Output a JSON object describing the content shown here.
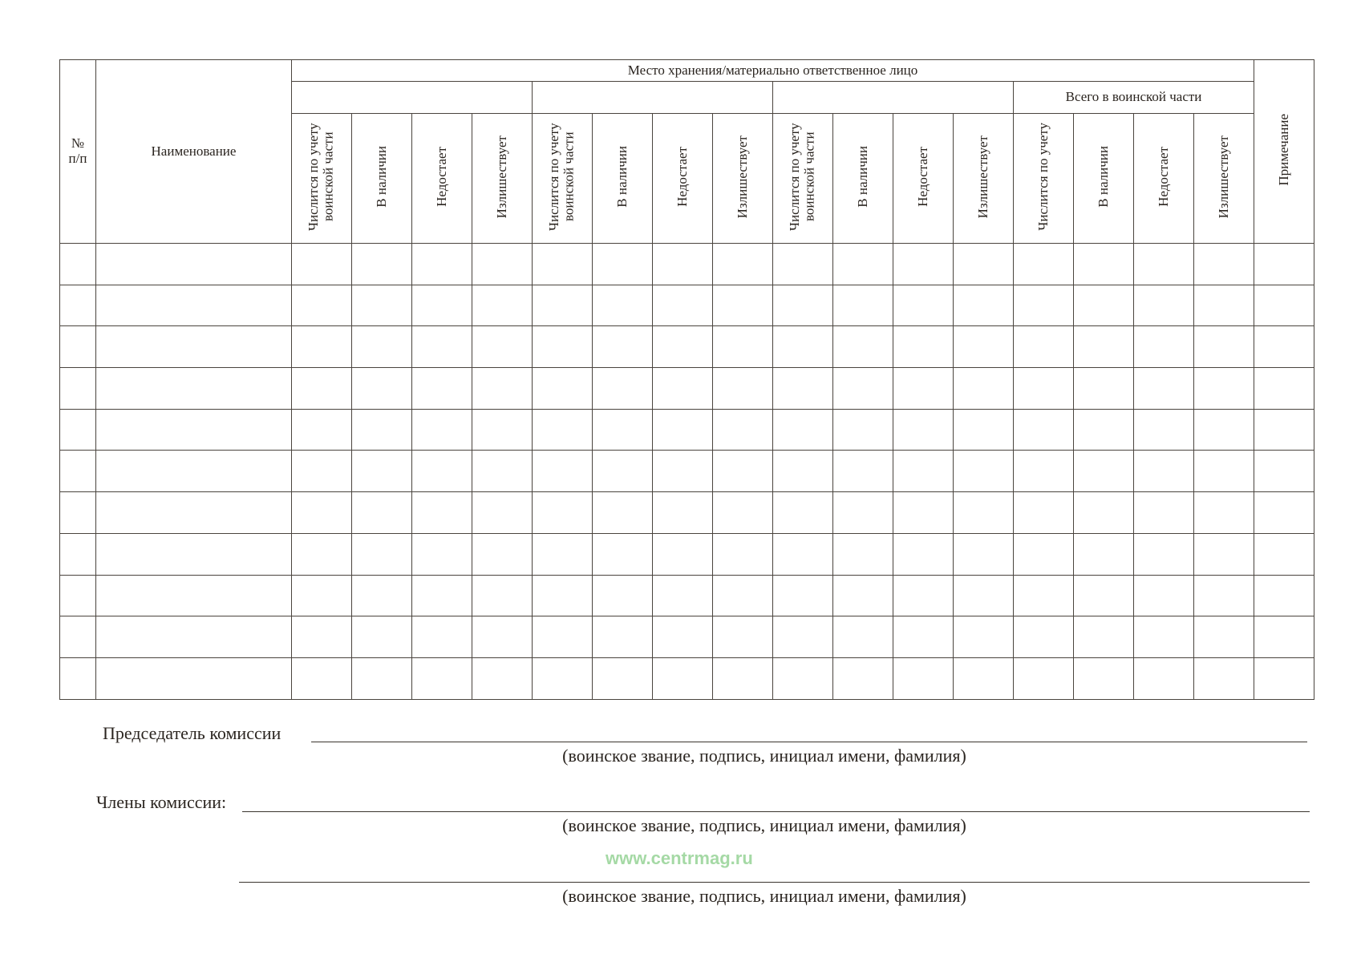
{
  "table": {
    "num_header": "№ п/п",
    "name_header": "Наименование",
    "storage_header": "Место хранения/материально ответственное лицо",
    "groups": [
      "",
      "",
      "",
      "Всего в воинской части"
    ],
    "group_columns": [
      [
        "Числится по учету воинской части",
        "В наличии",
        "Недостает",
        "Излишествует"
      ],
      [
        "Числится по учету воинской части",
        "В наличии",
        "Недостает",
        "Излишествует"
      ],
      [
        "Числится по учету воинской части",
        "В наличии",
        "Недостает",
        "Излишествует"
      ],
      [
        "Числится по учету",
        "В наличии",
        "Недостает",
        "Излишествует"
      ]
    ],
    "note_header": "Примечание",
    "empty_rows": 11
  },
  "signatures": {
    "chairman_label": "Председатель комиссии",
    "members_label": "Члены комиссии:",
    "caption": "(воинское звание, подпись, инициал имени, фамилия)"
  },
  "watermark": "www.centrmag.ru"
}
